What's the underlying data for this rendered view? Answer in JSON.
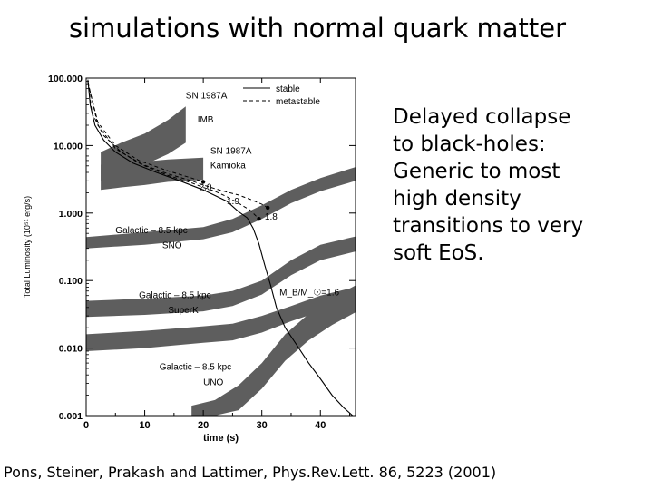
{
  "slide": {
    "title": "simulations with normal quark matter",
    "side_text": "Delayed collapse\nto black-holes:\nGeneric to most\nhigh density\ntransitions to very\nsoft EoS.",
    "citation": "Pons, Steiner, Prakash and Lattimer, Phys.Rev.Lett. 86, 5223 (2001)"
  },
  "chart_data": {
    "type": "line",
    "xlabel": "time (s)",
    "ylabel": "Total Luminosity (10⁵¹ erg/s)",
    "xlim": [
      0,
      46
    ],
    "ylim": [
      0.001,
      100
    ],
    "log_y": true,
    "x_ticks": [
      {
        "v": 0,
        "label": "0"
      },
      {
        "v": 10,
        "label": "10"
      },
      {
        "v": 20,
        "label": "20"
      },
      {
        "v": 30,
        "label": "30"
      },
      {
        "v": 40,
        "label": "40"
      }
    ],
    "y_ticks": [
      {
        "v": 100,
        "label": "100.000"
      },
      {
        "v": 10,
        "label": "10.000"
      },
      {
        "v": 1,
        "label": "1.000"
      },
      {
        "v": 0.1,
        "label": "0.100"
      },
      {
        "v": 0.01,
        "label": "0.010"
      },
      {
        "v": 0.001,
        "label": "0.001"
      }
    ],
    "legend": {
      "placement": "top-right",
      "entries": [
        {
          "label": "stable",
          "style": "solid"
        },
        {
          "label": "metastable",
          "style": "dashed"
        }
      ]
    },
    "curves": [
      {
        "style": "solid",
        "points": [
          [
            0.3,
            95
          ],
          [
            0.7,
            40
          ],
          [
            1.5,
            20
          ],
          [
            3,
            12
          ],
          [
            5,
            8
          ],
          [
            8,
            5.5
          ],
          [
            12,
            4
          ],
          [
            16,
            3
          ],
          [
            20,
            2.2
          ],
          [
            24,
            1.5
          ],
          [
            26,
            1.05
          ],
          [
            27.5,
            0.85
          ],
          [
            28.5,
            0.6
          ],
          [
            29.5,
            0.35
          ],
          [
            30.5,
            0.17
          ],
          [
            31.5,
            0.085
          ],
          [
            32.5,
            0.04
          ],
          [
            34,
            0.02
          ],
          [
            36,
            0.011
          ],
          [
            38,
            0.006
          ],
          [
            40,
            0.0035
          ],
          [
            42,
            0.002
          ],
          [
            44,
            0.0013
          ],
          [
            45.5,
            0.001
          ]
        ]
      },
      {
        "style": "dashed",
        "points": [
          [
            0.3,
            90
          ],
          [
            1,
            30
          ],
          [
            3,
            14
          ],
          [
            6,
            8
          ],
          [
            10,
            5
          ],
          [
            14,
            3.6
          ],
          [
            18,
            2.8
          ],
          [
            20,
            2.4
          ],
          [
            22,
            2.1
          ],
          [
            24,
            1.75
          ],
          [
            26,
            1.4
          ],
          [
            28,
            1.1
          ],
          [
            29.5,
            0.82
          ]
        ]
      },
      {
        "style": "dashed",
        "points": [
          [
            0.3,
            88
          ],
          [
            2,
            20
          ],
          [
            5,
            9
          ],
          [
            9,
            5.5
          ],
          [
            14,
            3.8
          ],
          [
            18,
            3.0
          ],
          [
            20,
            2.6
          ],
          [
            22,
            2.3
          ],
          [
            24,
            2.05
          ],
          [
            26,
            1.85
          ],
          [
            28,
            1.6
          ],
          [
            30,
            1.35
          ],
          [
            31,
            1.2
          ]
        ]
      },
      {
        "style": "dashed",
        "points": [
          [
            0.3,
            85
          ],
          [
            2,
            22
          ],
          [
            5,
            10
          ],
          [
            9,
            6
          ],
          [
            14,
            4.2
          ],
          [
            18,
            3.3
          ],
          [
            20,
            2.9
          ]
        ]
      }
    ],
    "bands": [
      {
        "label": "SN 1987A IMB",
        "upper": [
          [
            2.5,
            8
          ],
          [
            6,
            11
          ],
          [
            10,
            15
          ],
          [
            14,
            24
          ],
          [
            17,
            38
          ]
        ],
        "lower": [
          [
            2.5,
            3
          ],
          [
            6,
            4
          ],
          [
            10,
            5.2
          ],
          [
            14,
            7.5
          ],
          [
            17,
            11
          ]
        ]
      },
      {
        "label": "SN 1987A Kamioka",
        "upper": [
          [
            2.5,
            5.2
          ],
          [
            6,
            5.5
          ],
          [
            10,
            5.8
          ],
          [
            14,
            6.2
          ],
          [
            20,
            6.6
          ]
        ],
        "lower": [
          [
            2.5,
            2.2
          ],
          [
            6,
            2.4
          ],
          [
            10,
            2.6
          ],
          [
            14,
            2.9
          ],
          [
            20,
            3.1
          ]
        ]
      },
      {
        "label": "Galactic – 8.5 kpc SNO",
        "upper": [
          [
            0,
            0.44
          ],
          [
            10,
            0.52
          ],
          [
            20,
            0.62
          ],
          [
            25,
            0.82
          ],
          [
            30,
            1.3
          ],
          [
            35,
            2.2
          ],
          [
            40,
            3.3
          ],
          [
            46,
            4.8
          ]
        ],
        "lower": [
          [
            0,
            0.3
          ],
          [
            10,
            0.34
          ],
          [
            20,
            0.41
          ],
          [
            25,
            0.52
          ],
          [
            30,
            0.82
          ],
          [
            35,
            1.4
          ],
          [
            40,
            2.1
          ],
          [
            46,
            3.0
          ]
        ]
      },
      {
        "label": "Galactic – 8.5 kpc SuperK",
        "upper": [
          [
            0,
            0.05
          ],
          [
            10,
            0.054
          ],
          [
            20,
            0.06
          ],
          [
            25,
            0.07
          ],
          [
            30,
            0.1
          ],
          [
            35,
            0.2
          ],
          [
            40,
            0.34
          ],
          [
            46,
            0.45
          ]
        ],
        "lower": [
          [
            0,
            0.029
          ],
          [
            10,
            0.031
          ],
          [
            20,
            0.035
          ],
          [
            25,
            0.042
          ],
          [
            30,
            0.062
          ],
          [
            35,
            0.12
          ],
          [
            40,
            0.2
          ],
          [
            46,
            0.27
          ]
        ]
      },
      {
        "label": "Galactic – 8.5 kpc UNO",
        "upper": [
          [
            0,
            0.016
          ],
          [
            10,
            0.018
          ],
          [
            20,
            0.021
          ],
          [
            25,
            0.023
          ],
          [
            30,
            0.03
          ],
          [
            35,
            0.042
          ],
          [
            40,
            0.06
          ],
          [
            46,
            0.08
          ]
        ],
        "lower": [
          [
            0,
            0.009
          ],
          [
            10,
            0.01
          ],
          [
            20,
            0.012
          ],
          [
            25,
            0.013
          ],
          [
            30,
            0.017
          ],
          [
            35,
            0.025
          ],
          [
            40,
            0.035
          ],
          [
            46,
            0.047
          ]
        ]
      },
      {
        "label": "lowest band",
        "upper": [
          [
            18,
            0.0014
          ],
          [
            22,
            0.0017
          ],
          [
            26,
            0.0028
          ],
          [
            30,
            0.006
          ],
          [
            34,
            0.016
          ],
          [
            38,
            0.032
          ],
          [
            42,
            0.055
          ],
          [
            46,
            0.085
          ]
        ],
        "lower": [
          [
            18,
            0.001
          ],
          [
            22,
            0.001
          ],
          [
            26,
            0.0012
          ],
          [
            30,
            0.0025
          ],
          [
            34,
            0.0065
          ],
          [
            38,
            0.013
          ],
          [
            42,
            0.022
          ],
          [
            46,
            0.034
          ]
        ]
      }
    ],
    "annotations": [
      {
        "text": "SN 1987A",
        "x": 17,
        "y": 50
      },
      {
        "text": "IMB",
        "x": 19,
        "y": 22
      },
      {
        "text": "SN 1987A",
        "x": 21.2,
        "y": 7.5
      },
      {
        "text": "Kamioka",
        "x": 21.2,
        "y": 4.6
      },
      {
        "text": "2.0",
        "x": 19.3,
        "y": 2.2
      },
      {
        "text": "1.9",
        "x": 24,
        "y": 1.35
      },
      {
        "text": "1.8",
        "x": 30.5,
        "y": 0.8
      },
      {
        "text": "Galactic – 8.5 kpc",
        "x": 5,
        "y": 0.5
      },
      {
        "text": "SNO",
        "x": 13,
        "y": 0.3
      },
      {
        "text": "M_B/M_☉=1.6",
        "x": 33,
        "y": 0.06
      },
      {
        "text": "Galactic – 8.5 kpc",
        "x": 9,
        "y": 0.055
      },
      {
        "text": "SuperK",
        "x": 14,
        "y": 0.033
      },
      {
        "text": "Galactic – 8.5 kpc",
        "x": 12.5,
        "y": 0.0048
      },
      {
        "text": "UNO",
        "x": 20,
        "y": 0.0028
      }
    ]
  }
}
